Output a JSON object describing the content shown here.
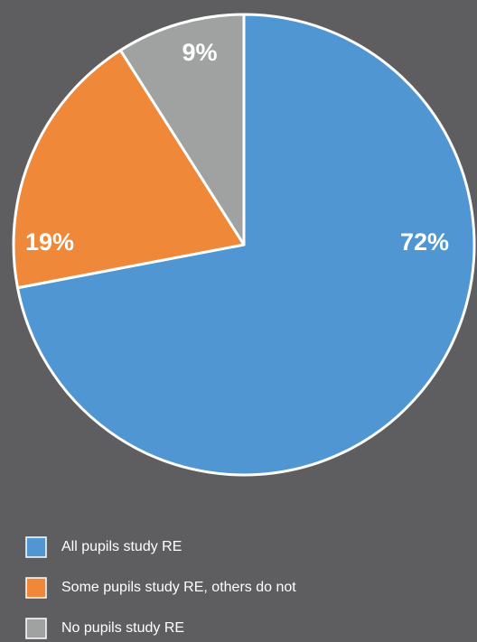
{
  "chart_data": {
    "type": "pie",
    "categories": [
      "All pupils study RE",
      "Some pupils study RE, others do not",
      "No pupils study RE"
    ],
    "values": [
      72,
      19,
      9
    ],
    "value_labels": [
      "72%",
      "19%",
      "9%"
    ],
    "colors": [
      "#4f96d2",
      "#f0883a",
      "#a0a2a1"
    ]
  }
}
